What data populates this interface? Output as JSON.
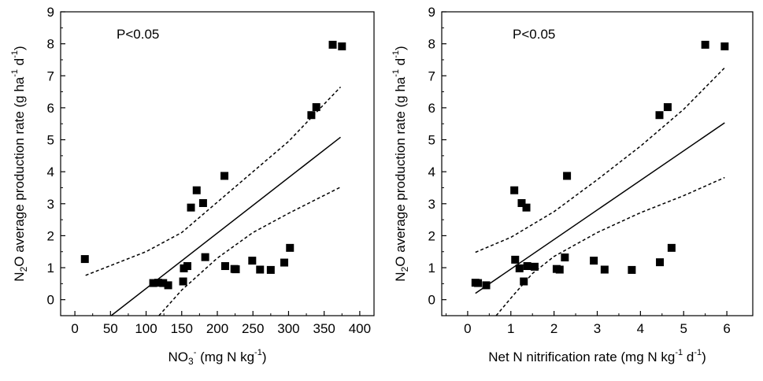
{
  "chart_data": [
    {
      "type": "scatter",
      "annotation": "P<0.05",
      "xlabel": {
        "pre": "NO",
        "sub": "3",
        "sup": "-",
        "mid": " (mg N kg",
        "sup2": "-1",
        "post": ")"
      },
      "ylabel": {
        "pre": "N",
        "sub": "2",
        "mid": "O average production rate (g ha",
        "sup": "-1",
        "mid2": " d",
        "sup2": "-1",
        "post": ")"
      },
      "xlim": [
        -20,
        420
      ],
      "ylim": [
        -0.5,
        9
      ],
      "xticks": [
        0,
        50,
        100,
        150,
        200,
        250,
        300,
        350,
        400
      ],
      "yticks": [
        0,
        1,
        2,
        3,
        4,
        5,
        6,
        7,
        8,
        9
      ],
      "points": [
        [
          14,
          1.27
        ],
        [
          110,
          0.52
        ],
        [
          117,
          0.53
        ],
        [
          124,
          0.52
        ],
        [
          131,
          0.45
        ],
        [
          152,
          0.57
        ],
        [
          153,
          0.98
        ],
        [
          158,
          1.05
        ],
        [
          163,
          2.88
        ],
        [
          171,
          3.42
        ],
        [
          180,
          3.02
        ],
        [
          183,
          1.33
        ],
        [
          210,
          3.87
        ],
        [
          211,
          1.05
        ],
        [
          224,
          0.96
        ],
        [
          226,
          0.95
        ],
        [
          249,
          1.22
        ],
        [
          260,
          0.94
        ],
        [
          275,
          0.93
        ],
        [
          294,
          1.16
        ],
        [
          302,
          1.62
        ],
        [
          332,
          5.77
        ],
        [
          339,
          6.02
        ],
        [
          362,
          7.97
        ],
        [
          375,
          7.92
        ]
      ],
      "fit_line": [
        [
          51,
          -0.5
        ],
        [
          373,
          5.08
        ]
      ],
      "ci_upper": [
        [
          15,
          0.76
        ],
        [
          100,
          1.5
        ],
        [
          150,
          2.1
        ],
        [
          200,
          3.05
        ],
        [
          250,
          4.0
        ],
        [
          300,
          4.95
        ],
        [
          373,
          6.65
        ]
      ],
      "ci_lower": [
        [
          118,
          -0.5
        ],
        [
          150,
          0.3
        ],
        [
          200,
          1.3
        ],
        [
          250,
          2.1
        ],
        [
          300,
          2.7
        ],
        [
          373,
          3.52
        ]
      ]
    },
    {
      "type": "scatter",
      "annotation": "P<0.05",
      "xlabel": {
        "pre": "Net N nitrification rate (mg N kg",
        "sup": "-1",
        "mid": " d",
        "sup2": "-1",
        "post": ")"
      },
      "ylabel": {
        "pre": "N",
        "sub": "2",
        "mid": "O average production rate (g ha",
        "sup": "-1",
        "mid2": " d",
        "sup2": "-1",
        "post": ")"
      },
      "xlim": [
        -0.6,
        6.6
      ],
      "ylim": [
        -0.5,
        9
      ],
      "xticks": [
        0,
        1,
        2,
        3,
        4,
        5,
        6
      ],
      "yticks": [
        0,
        1,
        2,
        3,
        4,
        5,
        6,
        7,
        8,
        9
      ],
      "points": [
        [
          0.18,
          0.53
        ],
        [
          0.24,
          0.52
        ],
        [
          0.43,
          0.45
        ],
        [
          1.08,
          3.42
        ],
        [
          1.1,
          1.25
        ],
        [
          1.2,
          0.98
        ],
        [
          1.25,
          3.02
        ],
        [
          1.3,
          0.57
        ],
        [
          1.36,
          2.88
        ],
        [
          1.38,
          1.05
        ],
        [
          1.55,
          1.03
        ],
        [
          2.06,
          0.96
        ],
        [
          2.13,
          0.94
        ],
        [
          2.25,
          1.32
        ],
        [
          2.3,
          3.87
        ],
        [
          2.92,
          1.22
        ],
        [
          3.17,
          0.94
        ],
        [
          3.8,
          0.93
        ],
        [
          4.44,
          5.77
        ],
        [
          4.45,
          1.17
        ],
        [
          4.63,
          6.02
        ],
        [
          4.72,
          1.62
        ],
        [
          5.5,
          7.97
        ],
        [
          5.95,
          7.92
        ]
      ],
      "fit_line": [
        [
          0.18,
          0.2
        ],
        [
          5.95,
          5.53
        ]
      ],
      "ci_upper": [
        [
          0.18,
          1.48
        ],
        [
          1,
          1.95
        ],
        [
          2,
          2.75
        ],
        [
          3,
          3.75
        ],
        [
          4,
          4.8
        ],
        [
          5,
          5.95
        ],
        [
          5.95,
          7.25
        ]
      ],
      "ci_lower": [
        [
          0.66,
          -0.5
        ],
        [
          1,
          0.05
        ],
        [
          1.5,
          0.82
        ],
        [
          2,
          1.35
        ],
        [
          3,
          2.1
        ],
        [
          4,
          2.72
        ],
        [
          5,
          3.25
        ],
        [
          5.95,
          3.82
        ]
      ]
    }
  ]
}
